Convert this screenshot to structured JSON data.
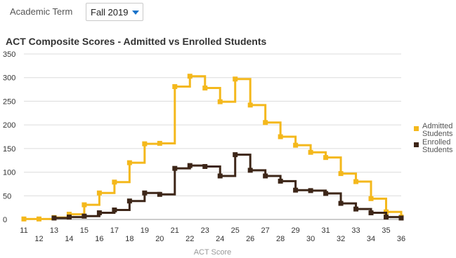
{
  "filter": {
    "label": "Academic Term",
    "selected": "Fall 2019"
  },
  "chart_data": {
    "type": "line",
    "title": "ACT Composite Scores - Admitted vs Enrolled Students",
    "xlabel": "ACT Score",
    "ylabel": "",
    "x": [
      11,
      12,
      13,
      14,
      15,
      16,
      17,
      18,
      19,
      20,
      21,
      22,
      23,
      24,
      25,
      26,
      27,
      28,
      29,
      30,
      31,
      32,
      33,
      34,
      35,
      36
    ],
    "ylim": [
      0,
      350
    ],
    "yticks": [
      0,
      50,
      100,
      150,
      200,
      250,
      300,
      350
    ],
    "grid": true,
    "legend_position": "right",
    "series": [
      {
        "name": "Admitted Students",
        "color": "#f4b81c",
        "values": [
          1,
          1,
          4,
          11,
          31,
          56,
          79,
          120,
          160,
          161,
          281,
          303,
          278,
          249,
          297,
          242,
          205,
          175,
          157,
          142,
          131,
          97,
          80,
          44,
          16,
          5
        ]
      },
      {
        "name": "Enrolled Students",
        "color": "#3d2618",
        "values": [
          null,
          null,
          3,
          5,
          7,
          14,
          20,
          39,
          56,
          53,
          108,
          114,
          112,
          92,
          137,
          104,
          92,
          81,
          62,
          61,
          55,
          34,
          22,
          14,
          5,
          3
        ]
      }
    ]
  }
}
